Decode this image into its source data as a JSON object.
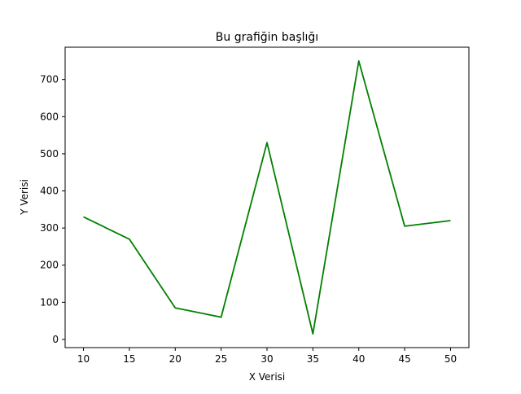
{
  "chart_data": {
    "type": "line",
    "title": "Bu grafiğin başlığı",
    "xlabel": "X Verisi",
    "ylabel": "Y Verisi",
    "x": [
      10,
      15,
      20,
      25,
      30,
      35,
      40,
      45,
      50
    ],
    "series": [
      {
        "values": [
          330,
          270,
          85,
          60,
          530,
          15,
          750,
          305,
          320
        ],
        "color": "#008000"
      }
    ],
    "xlim": [
      8,
      52
    ],
    "ylim": [
      -22,
      787
    ],
    "xticks": [
      10,
      15,
      20,
      25,
      30,
      35,
      40,
      45,
      50
    ],
    "yticks": [
      0,
      100,
      200,
      300,
      400,
      500,
      600,
      700
    ],
    "grid": false,
    "legend": "none"
  }
}
